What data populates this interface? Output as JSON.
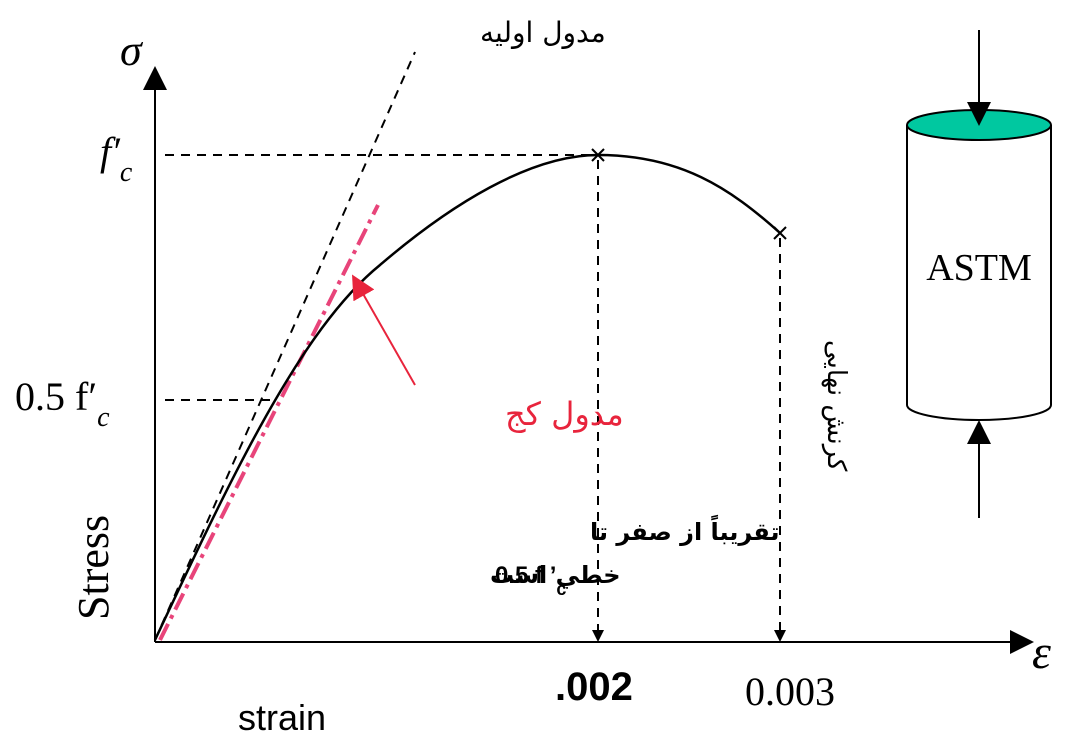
{
  "axes": {
    "y_symbol": "σ",
    "x_symbol": "ε",
    "y_label": "Stress",
    "x_label": "strain"
  },
  "y_marks": [
    {
      "text": "f′",
      "sub": "c"
    },
    {
      "text": "0.5 f′",
      "sub": "c"
    }
  ],
  "x_marks": [
    ".002",
    "0.003"
  ],
  "annotations": {
    "initial_modulus": "مدول اولیه",
    "secant_modulus": "مدول کج",
    "linear_note_line1": "تقریباً از صفر تا",
    "linear_note_line2_text": "خطي است",
    "linear_note_line2_expr": "0.5 f ’",
    "linear_note_line2_sub": "c",
    "ultimate_strain": "کرنش نهایی"
  },
  "specimen": {
    "label": "ASTM"
  }
}
